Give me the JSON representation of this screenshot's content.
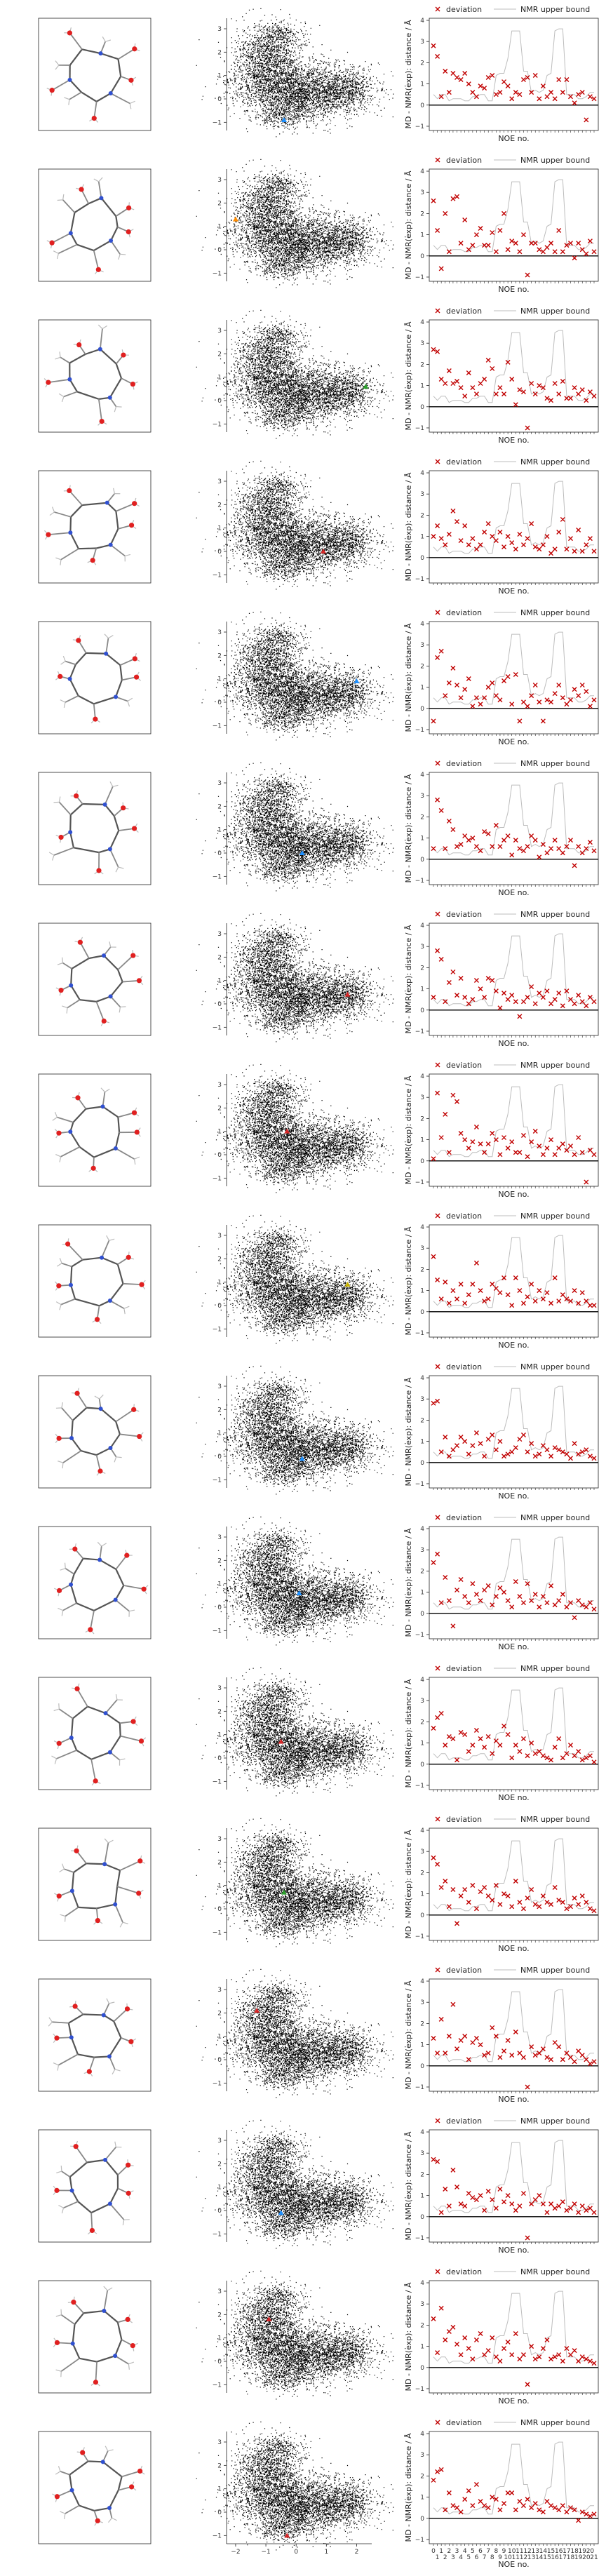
{
  "figure": {
    "legend": {
      "deviation_label": "deviation",
      "bound_label": "NMR upper bound"
    },
    "noe_xlabel": "NOE no.",
    "noe_ylabel": "MD - NMR(exp): distance / Å",
    "noe_yticks": [
      -1,
      0,
      1,
      2,
      3,
      4
    ],
    "scatter_xticks": [
      -2,
      -1,
      0,
      1,
      2
    ],
    "scatter_yticks": [
      -1,
      0,
      1,
      2,
      3
    ]
  },
  "chart_data": {
    "type": "scatter",
    "noe_tick_labels": [
      "0",
      "1",
      "1",
      "2",
      "2",
      "3",
      "3",
      "4",
      "4",
      "5",
      "5",
      "6",
      "6",
      "7",
      "7",
      "8",
      "8",
      "9",
      "9",
      "10",
      "10",
      "11",
      "11",
      "12",
      "12",
      "13",
      "13",
      "14",
      "14",
      "15",
      "15",
      "16",
      "16",
      "17",
      "17",
      "18",
      "18",
      "19",
      "19",
      "20",
      "20",
      "21"
    ],
    "upper_bound": [
      0.5,
      0.3,
      0.5,
      0.5,
      0.2,
      0.3,
      0.3,
      0.3,
      0.2,
      0.2,
      0.4,
      0.4,
      0.5,
      0.5,
      0.2,
      0.2,
      1.4,
      1.5,
      1.5,
      2.2,
      3.5,
      3.5,
      3.5,
      1.6,
      1.6,
      0.6,
      0.7,
      0.6,
      0.7,
      1.4,
      1.5,
      3.5,
      3.6,
      3.6,
      0.5,
      0.5,
      0.5,
      0.3,
      0.3,
      0.4,
      0.6,
      0.6
    ],
    "frames": [
      {
        "marker": {
          "x": -0.4,
          "y": -0.9,
          "color": "#1e90ff"
        },
        "deviation": [
          2.8,
          2.3,
          0.4,
          1.6,
          0.6,
          1.5,
          1.3,
          1.2,
          1.5,
          1.0,
          0.6,
          0.4,
          0.9,
          0.8,
          1.3,
          1.4,
          0.5,
          0.6,
          1.1,
          0.9,
          0.3,
          0.6,
          0.5,
          1.2,
          1.3,
          0.6,
          1.4,
          0.3,
          0.9,
          0.4,
          0.6,
          0.3,
          1.2,
          0.6,
          1.2,
          0.4,
          0.1,
          0.5,
          0.6,
          -0.7,
          0.4,
          0.3
        ]
      },
      {
        "marker": {
          "x": -2.0,
          "y": 1.3,
          "color": "#ff8c00"
        },
        "deviation": [
          2.6,
          1.2,
          -0.6,
          2.0,
          0.2,
          2.7,
          2.8,
          0.6,
          1.7,
          0.3,
          0.5,
          1.0,
          1.3,
          0.5,
          0.5,
          1.1,
          0.2,
          1.2,
          2.0,
          0.3,
          0.7,
          0.6,
          0.2,
          1.0,
          -0.9,
          0.6,
          0.6,
          0.3,
          0.2,
          0.4,
          0.6,
          0.2,
          1.2,
          0.2,
          0.5,
          0.6,
          -0.1,
          0.6,
          0.3,
          0.1,
          0.7,
          0.2
        ]
      },
      {
        "marker": {
          "x": 2.3,
          "y": 0.6,
          "color": "#2ca02c"
        },
        "deviation": [
          2.7,
          2.6,
          1.3,
          1.1,
          1.7,
          1.1,
          1.2,
          0.9,
          0.5,
          1.6,
          0.9,
          0.6,
          1.1,
          1.3,
          2.2,
          1.8,
          0.6,
          0.9,
          0.6,
          2.1,
          1.3,
          0.1,
          0.8,
          0.7,
          -1.0,
          1.1,
          0.6,
          1.0,
          0.9,
          0.4,
          0.3,
          1.1,
          0.6,
          1.2,
          0.4,
          0.4,
          0.9,
          0.6,
          0.8,
          0.3,
          0.7,
          0.5
        ]
      },
      {
        "marker": {
          "x": 0.9,
          "y": 0.0,
          "color": "#d62728"
        },
        "deviation": [
          1.0,
          1.5,
          0.9,
          0.6,
          1.1,
          2.2,
          1.7,
          0.8,
          1.5,
          0.6,
          0.9,
          0.4,
          0.6,
          1.2,
          1.6,
          1.0,
          0.8,
          1.2,
          0.5,
          1.0,
          0.7,
          0.4,
          1.1,
          0.6,
          0.9,
          1.6,
          0.5,
          0.4,
          0.6,
          1.0,
          0.2,
          0.4,
          1.2,
          1.8,
          0.4,
          0.9,
          0.3,
          1.3,
          0.3,
          0.6,
          0.9,
          0.3
        ]
      },
      {
        "marker": {
          "x": 2.0,
          "y": 0.9,
          "color": "#1e90ff"
        },
        "deviation": [
          -0.6,
          2.4,
          2.7,
          0.6,
          1.2,
          1.9,
          1.1,
          0.5,
          0.9,
          1.4,
          0.1,
          0.5,
          0.2,
          0.5,
          1.0,
          1.2,
          0.6,
          0.4,
          1.3,
          1.5,
          0.2,
          1.6,
          -0.6,
          0.3,
          0.1,
          0.6,
          1.1,
          0.3,
          -0.6,
          0.4,
          0.3,
          0.7,
          1.1,
          0.5,
          0.2,
          0.4,
          0.9,
          0.6,
          1.1,
          0.8,
          0.1,
          0.4
        ]
      },
      {
        "marker": {
          "x": 0.2,
          "y": 0.0,
          "color": "#1e90ff"
        },
        "deviation": [
          0.5,
          2.8,
          2.3,
          0.5,
          1.8,
          1.4,
          0.6,
          0.7,
          1.1,
          0.9,
          1.0,
          0.6,
          0.4,
          1.3,
          1.2,
          0.6,
          1.6,
          0.6,
          0.9,
          1.1,
          0.2,
          0.9,
          0.5,
          0.4,
          0.6,
          1.1,
          0.9,
          0.1,
          0.7,
          0.3,
          0.5,
          0.9,
          0.5,
          0.3,
          0.6,
          0.9,
          -0.3,
          0.6,
          0.3,
          0.5,
          0.8,
          0.4
        ]
      },
      {
        "marker": {
          "x": 1.7,
          "y": 0.4,
          "color": "#d62728"
        },
        "deviation": [
          0.6,
          2.8,
          2.4,
          0.4,
          1.3,
          1.8,
          0.7,
          1.5,
          0.6,
          0.3,
          0.5,
          1.4,
          1.0,
          0.6,
          1.5,
          1.4,
          0.9,
          0.1,
          0.8,
          0.5,
          0.7,
          0.4,
          -0.3,
          0.4,
          0.6,
          1.1,
          0.3,
          0.8,
          0.6,
          0.9,
          0.3,
          0.5,
          0.8,
          0.2,
          0.9,
          0.5,
          0.3,
          0.7,
          0.4,
          0.2,
          0.6,
          0.4
        ]
      },
      {
        "marker": {
          "x": -0.3,
          "y": 1.0,
          "color": "#d62728"
        },
        "deviation": [
          0.1,
          3.2,
          1.1,
          2.2,
          0.4,
          3.1,
          2.8,
          1.3,
          1.0,
          0.6,
          0.9,
          1.6,
          0.8,
          0.4,
          0.8,
          1.3,
          1.0,
          0.3,
          1.1,
          0.6,
          0.9,
          0.4,
          0.4,
          1.2,
          0.2,
          0.9,
          1.4,
          0.7,
          0.3,
          0.6,
          1.0,
          0.3,
          0.6,
          0.8,
          0.5,
          0.7,
          0.3,
          1.1,
          0.4,
          -1.0,
          0.5,
          0.3
        ]
      },
      {
        "marker": {
          "x": 1.7,
          "y": 0.9,
          "color": "#c9b400"
        },
        "deviation": [
          2.6,
          1.5,
          0.6,
          1.4,
          0.4,
          1.0,
          0.6,
          1.3,
          0.4,
          0.8,
          1.3,
          2.3,
          1.0,
          0.5,
          0.6,
          1.3,
          1.1,
          0.9,
          1.6,
          0.8,
          0.3,
          1.6,
          1.0,
          0.4,
          0.7,
          1.3,
          0.5,
          1.0,
          0.6,
          0.9,
          0.4,
          1.6,
          0.5,
          0.8,
          0.6,
          0.5,
          1.0,
          0.4,
          0.9,
          0.5,
          0.3,
          0.3
        ]
      },
      {
        "marker": {
          "x": 0.2,
          "y": -0.1,
          "color": "#1e90ff"
        },
        "deviation": [
          2.8,
          2.9,
          0.5,
          1.2,
          0.3,
          0.6,
          0.8,
          1.2,
          1.0,
          0.4,
          0.8,
          1.4,
          0.9,
          0.3,
          1.1,
          1.3,
          0.6,
          1.0,
          0.3,
          0.4,
          0.5,
          0.7,
          1.1,
          1.3,
          0.5,
          0.9,
          0.3,
          0.4,
          0.8,
          0.6,
          0.3,
          0.7,
          0.6,
          0.5,
          0.4,
          0.2,
          0.9,
          0.4,
          0.5,
          0.6,
          0.3,
          0.2
        ]
      },
      {
        "marker": {
          "x": 0.1,
          "y": 0.6,
          "color": "#1e90ff"
        },
        "deviation": [
          2.4,
          2.8,
          0.5,
          1.7,
          0.6,
          -0.6,
          1.1,
          1.6,
          0.8,
          0.5,
          1.4,
          0.9,
          0.6,
          1.1,
          1.3,
          0.4,
          0.8,
          1.2,
          1.0,
          0.6,
          0.3,
          1.5,
          0.8,
          0.5,
          1.4,
          0.6,
          0.9,
          0.3,
          0.8,
          0.5,
          1.3,
          0.4,
          0.6,
          0.9,
          0.3,
          0.5,
          -0.2,
          0.6,
          0.4,
          0.3,
          0.5,
          0.2
        ]
      },
      {
        "marker": {
          "x": -0.5,
          "y": 0.7,
          "color": "#d62728"
        },
        "deviation": [
          1.7,
          2.2,
          2.4,
          0.9,
          1.3,
          1.2,
          0.2,
          1.5,
          1.4,
          0.6,
          0.9,
          1.6,
          1.2,
          0.8,
          1.3,
          0.5,
          1.1,
          0.9,
          1.8,
          1.4,
          0.3,
          0.9,
          0.6,
          1.2,
          0.4,
          1.0,
          0.5,
          0.6,
          0.4,
          0.3,
          0.2,
          0.8,
          1.2,
          0.3,
          0.5,
          0.9,
          0.4,
          0.6,
          0.2,
          0.3,
          0.4,
          0.1
        ]
      },
      {
        "marker": {
          "x": -0.4,
          "y": 0.7,
          "color": "#2ca02c"
        },
        "deviation": [
          2.7,
          2.4,
          1.3,
          1.6,
          0.4,
          1.2,
          -0.4,
          0.9,
          1.2,
          0.6,
          1.4,
          0.3,
          1.1,
          1.3,
          0.9,
          0.7,
          1.4,
          0.5,
          1.0,
          0.9,
          0.4,
          1.6,
          0.6,
          0.3,
          0.8,
          1.2,
          0.5,
          0.4,
          0.9,
          0.6,
          0.5,
          1.3,
          0.7,
          0.6,
          0.3,
          0.4,
          0.8,
          0.5,
          0.9,
          0.6,
          0.3,
          0.2
        ]
      },
      {
        "marker": {
          "x": -1.3,
          "y": 2.1,
          "color": "#d62728"
        },
        "deviation": [
          1.3,
          0.6,
          2.2,
          0.6,
          1.4,
          2.9,
          0.8,
          1.2,
          1.4,
          0.3,
          1.1,
          1.3,
          1.0,
          0.5,
          0.6,
          1.8,
          1.4,
          0.4,
          0.7,
          1.2,
          0.5,
          1.6,
          0.6,
          0.4,
          -1.0,
          0.9,
          0.5,
          0.6,
          0.8,
          0.4,
          0.3,
          1.1,
          0.9,
          0.3,
          0.6,
          0.4,
          0.2,
          0.7,
          0.5,
          0.3,
          0.1,
          0.2
        ]
      },
      {
        "marker": {
          "x": -0.5,
          "y": -0.1,
          "color": "#1e90ff"
        },
        "deviation": [
          2.7,
          2.6,
          0.2,
          1.3,
          0.5,
          2.2,
          1.4,
          0.6,
          0.5,
          1.1,
          0.9,
          0.8,
          1.0,
          0.3,
          1.2,
          0.8,
          0.4,
          1.3,
          0.7,
          1.0,
          0.6,
          0.3,
          0.5,
          1.1,
          -1.0,
          0.6,
          0.8,
          1.0,
          0.6,
          0.2,
          0.6,
          0.4,
          0.5,
          0.7,
          0.3,
          0.4,
          0.6,
          0.2,
          0.5,
          0.3,
          0.4,
          0.2
        ]
      },
      {
        "marker": {
          "x": -0.9,
          "y": 1.8,
          "color": "#d62728"
        },
        "deviation": [
          2.3,
          0.7,
          2.8,
          1.3,
          1.7,
          1.9,
          1.1,
          0.6,
          1.4,
          0.9,
          0.4,
          1.3,
          1.6,
          0.6,
          0.8,
          1.4,
          0.5,
          0.3,
          0.9,
          1.2,
          0.6,
          1.6,
          0.4,
          0.6,
          -0.8,
          1.0,
          0.4,
          0.5,
          0.9,
          1.3,
          0.4,
          0.5,
          0.6,
          0.3,
          0.9,
          0.6,
          0.8,
          0.3,
          0.5,
          0.4,
          0.3,
          0.2
        ]
      },
      {
        "marker": {
          "x": -0.3,
          "y": -1.0,
          "color": "#d62728"
        },
        "deviation": [
          1.8,
          2.2,
          2.3,
          0.4,
          1.2,
          0.6,
          0.5,
          0.3,
          0.9,
          1.3,
          0.6,
          1.6,
          0.8,
          0.6,
          0.5,
          1.0,
          0.9,
          0.4,
          0.7,
          1.2,
          1.2,
          0.4,
          0.8,
          0.6,
          0.9,
          0.5,
          0.7,
          0.4,
          0.3,
          0.8,
          0.6,
          0.5,
          0.4,
          0.6,
          0.3,
          0.5,
          0.4,
          -0.1,
          0.3,
          0.2,
          0.1,
          0.2
        ]
      }
    ]
  }
}
